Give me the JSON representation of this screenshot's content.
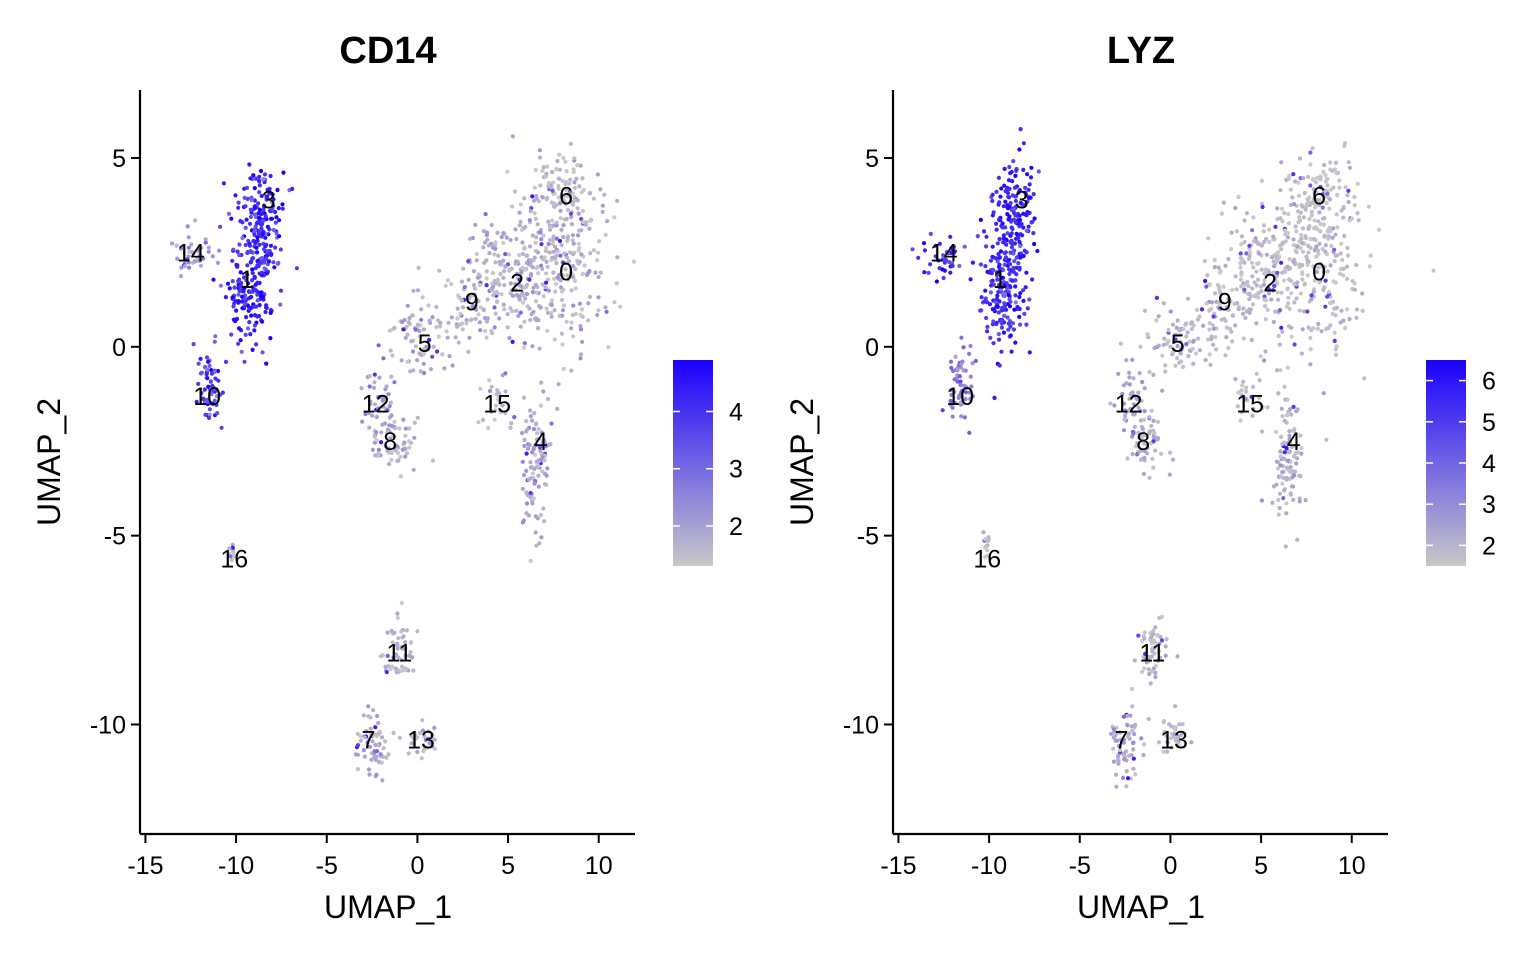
{
  "chart_data": [
    {
      "type": "scatter",
      "title": "CD14",
      "xlabel": "UMAP_1",
      "ylabel": "UMAP_2",
      "xlim": [
        -15.3,
        12.0
      ],
      "ylim": [
        -12.9,
        6.8
      ],
      "xticks": [
        -15,
        -10,
        -5,
        0,
        5,
        10
      ],
      "yticks": [
        -10,
        -5,
        0,
        5
      ],
      "xtick_labels": [
        "-15",
        "-10",
        "-5",
        "0",
        "5",
        "10"
      ],
      "ytick_labels": [
        "-10",
        "-5",
        "0",
        "5"
      ],
      "colors": {
        "low": "#c8c8c8",
        "high": "#1a00ff"
      },
      "legend": {
        "placement": "right",
        "min": 1.3,
        "max": 4.9,
        "ticks": [
          2,
          3,
          4
        ],
        "labels": [
          "2",
          "3",
          "4"
        ]
      },
      "cluster_labels": [
        {
          "label": "0",
          "x": 8.2,
          "y": 2.0
        },
        {
          "label": "1",
          "x": -9.4,
          "y": 1.8
        },
        {
          "label": "2",
          "x": 5.5,
          "y": 1.7
        },
        {
          "label": "3",
          "x": -8.2,
          "y": 3.9
        },
        {
          "label": "4",
          "x": 6.8,
          "y": -2.5
        },
        {
          "label": "5",
          "x": 0.4,
          "y": 0.1
        },
        {
          "label": "6",
          "x": 8.2,
          "y": 4.0
        },
        {
          "label": "7",
          "x": -2.7,
          "y": -10.4
        },
        {
          "label": "8",
          "x": -1.5,
          "y": -2.5
        },
        {
          "label": "9",
          "x": 3.0,
          "y": 1.2
        },
        {
          "label": "10",
          "x": -11.6,
          "y": -1.3
        },
        {
          "label": "11",
          "x": -1.0,
          "y": -8.1
        },
        {
          "label": "12",
          "x": -2.3,
          "y": -1.5
        },
        {
          "label": "13",
          "x": 0.2,
          "y": -10.4
        },
        {
          "label": "14",
          "x": -12.5,
          "y": 2.5
        },
        {
          "label": "15",
          "x": 4.4,
          "y": -1.5
        },
        {
          "label": "16",
          "x": -10.1,
          "y": -5.6
        }
      ],
      "clusters": [
        {
          "id": "0",
          "cx": 8.0,
          "cy": 2.3,
          "sx": 1.9,
          "sy": 1.6,
          "n": 240,
          "mean": 1.6
        },
        {
          "id": "2",
          "cx": 5.3,
          "cy": 2.0,
          "sx": 1.5,
          "sy": 1.2,
          "n": 160,
          "mean": 1.7
        },
        {
          "id": "6",
          "cx": 8.0,
          "cy": 4.0,
          "sx": 1.2,
          "sy": 0.8,
          "n": 90,
          "mean": 1.5
        },
        {
          "id": "9",
          "cx": 3.0,
          "cy": 1.2,
          "sx": 1.1,
          "sy": 0.9,
          "n": 70,
          "mean": 1.6
        },
        {
          "id": "5",
          "cx": 0.5,
          "cy": 0.2,
          "sx": 1.3,
          "sy": 0.7,
          "n": 80,
          "mean": 1.7
        },
        {
          "id": "12",
          "cx": -2.1,
          "cy": -1.5,
          "sx": 0.6,
          "sy": 0.8,
          "n": 45,
          "mean": 2.0
        },
        {
          "id": "8",
          "cx": -1.3,
          "cy": -2.5,
          "sx": 0.8,
          "sy": 0.5,
          "n": 60,
          "mean": 1.6
        },
        {
          "id": "15",
          "cx": 4.3,
          "cy": -1.4,
          "sx": 0.5,
          "sy": 0.5,
          "n": 25,
          "mean": 1.6
        },
        {
          "id": "4",
          "cx": 6.5,
          "cy": -3.0,
          "sx": 0.6,
          "sy": 1.2,
          "n": 110,
          "mean": 1.8
        },
        {
          "id": "3",
          "cx": -8.6,
          "cy": 3.4,
          "sx": 0.8,
          "sy": 1.0,
          "n": 160,
          "mean": 4.2
        },
        {
          "id": "1",
          "cx": -9.2,
          "cy": 1.5,
          "sx": 0.9,
          "sy": 1.1,
          "n": 180,
          "mean": 4.2
        },
        {
          "id": "14",
          "cx": -12.4,
          "cy": 2.4,
          "sx": 0.8,
          "sy": 0.4,
          "n": 40,
          "mean": 2.2
        },
        {
          "id": "10",
          "cx": -11.5,
          "cy": -1.0,
          "sx": 0.5,
          "sy": 0.7,
          "n": 60,
          "mean": 3.7
        },
        {
          "id": "16",
          "cx": -10.2,
          "cy": -5.4,
          "sx": 0.15,
          "sy": 0.3,
          "n": 12,
          "mean": 1.5
        },
        {
          "id": "11",
          "cx": -1.0,
          "cy": -8.1,
          "sx": 0.6,
          "sy": 0.6,
          "n": 55,
          "mean": 1.6
        },
        {
          "id": "7",
          "cx": -2.4,
          "cy": -10.5,
          "sx": 0.7,
          "sy": 0.6,
          "n": 65,
          "mean": 1.8
        },
        {
          "id": "13",
          "cx": 0.2,
          "cy": -10.3,
          "sx": 0.5,
          "sy": 0.4,
          "n": 30,
          "mean": 1.6
        }
      ]
    },
    {
      "type": "scatter",
      "title": "LYZ",
      "xlabel": "UMAP_1",
      "ylabel": "UMAP_2",
      "xlim": [
        -15.3,
        12.0
      ],
      "ylim": [
        -12.9,
        6.8
      ],
      "xticks": [
        -15,
        -10,
        -5,
        0,
        5,
        10
      ],
      "yticks": [
        -10,
        -5,
        0,
        5
      ],
      "xtick_labels": [
        "-15",
        "-10",
        "-5",
        "0",
        "5",
        "10"
      ],
      "ytick_labels": [
        "-10",
        "-5",
        "0",
        "5"
      ],
      "colors": {
        "low": "#c8c8c8",
        "high": "#1a00ff"
      },
      "legend": {
        "placement": "right",
        "min": 1.5,
        "max": 6.5,
        "ticks": [
          2,
          3,
          4,
          5,
          6
        ],
        "labels": [
          "2",
          "3",
          "4",
          "5",
          "6"
        ]
      },
      "cluster_labels": [
        {
          "label": "0",
          "x": 8.2,
          "y": 2.0
        },
        {
          "label": "1",
          "x": -9.4,
          "y": 1.8
        },
        {
          "label": "2",
          "x": 5.5,
          "y": 1.7
        },
        {
          "label": "3",
          "x": -8.2,
          "y": 3.9
        },
        {
          "label": "4",
          "x": 6.8,
          "y": -2.5
        },
        {
          "label": "5",
          "x": 0.4,
          "y": 0.1
        },
        {
          "label": "6",
          "x": 8.2,
          "y": 4.0
        },
        {
          "label": "7",
          "x": -2.7,
          "y": -10.4
        },
        {
          "label": "8",
          "x": -1.5,
          "y": -2.5
        },
        {
          "label": "9",
          "x": 3.0,
          "y": 1.2
        },
        {
          "label": "10",
          "x": -11.6,
          "y": -1.3
        },
        {
          "label": "11",
          "x": -1.0,
          "y": -8.1
        },
        {
          "label": "12",
          "x": -2.3,
          "y": -1.5
        },
        {
          "label": "13",
          "x": 0.2,
          "y": -10.4
        },
        {
          "label": "14",
          "x": -12.5,
          "y": 2.5
        },
        {
          "label": "15",
          "x": 4.4,
          "y": -1.5
        },
        {
          "label": "16",
          "x": -10.1,
          "y": -5.6
        }
      ],
      "clusters": [
        {
          "id": "0",
          "cx": 8.0,
          "cy": 2.3,
          "sx": 1.9,
          "sy": 1.6,
          "n": 240,
          "mean": 1.8
        },
        {
          "id": "2",
          "cx": 5.3,
          "cy": 2.0,
          "sx": 1.5,
          "sy": 1.2,
          "n": 160,
          "mean": 1.8
        },
        {
          "id": "6",
          "cx": 8.0,
          "cy": 4.0,
          "sx": 1.2,
          "sy": 0.8,
          "n": 90,
          "mean": 1.7
        },
        {
          "id": "9",
          "cx": 3.0,
          "cy": 1.2,
          "sx": 1.1,
          "sy": 0.9,
          "n": 70,
          "mean": 1.8
        },
        {
          "id": "5",
          "cx": 0.5,
          "cy": 0.2,
          "sx": 1.3,
          "sy": 0.7,
          "n": 80,
          "mean": 1.9
        },
        {
          "id": "12",
          "cx": -2.1,
          "cy": -1.5,
          "sx": 0.6,
          "sy": 0.8,
          "n": 45,
          "mean": 2.5
        },
        {
          "id": "8",
          "cx": -1.3,
          "cy": -2.5,
          "sx": 0.8,
          "sy": 0.5,
          "n": 60,
          "mean": 2.0
        },
        {
          "id": "15",
          "cx": 4.3,
          "cy": -1.4,
          "sx": 0.5,
          "sy": 0.5,
          "n": 25,
          "mean": 1.8
        },
        {
          "id": "4",
          "cx": 6.5,
          "cy": -3.0,
          "sx": 0.6,
          "sy": 1.2,
          "n": 110,
          "mean": 2.0
        },
        {
          "id": "3",
          "cx": -8.6,
          "cy": 3.4,
          "sx": 0.8,
          "sy": 1.0,
          "n": 160,
          "mean": 5.6
        },
        {
          "id": "1",
          "cx": -9.2,
          "cy": 1.5,
          "sx": 0.9,
          "sy": 1.1,
          "n": 180,
          "mean": 5.4
        },
        {
          "id": "14",
          "cx": -12.4,
          "cy": 2.4,
          "sx": 0.8,
          "sy": 0.4,
          "n": 40,
          "mean": 5.2
        },
        {
          "id": "10",
          "cx": -11.5,
          "cy": -1.0,
          "sx": 0.5,
          "sy": 0.7,
          "n": 60,
          "mean": 3.2
        },
        {
          "id": "16",
          "cx": -10.2,
          "cy": -5.4,
          "sx": 0.15,
          "sy": 0.3,
          "n": 12,
          "mean": 1.8
        },
        {
          "id": "11",
          "cx": -1.0,
          "cy": -8.1,
          "sx": 0.6,
          "sy": 0.6,
          "n": 55,
          "mean": 1.9
        },
        {
          "id": "7",
          "cx": -2.4,
          "cy": -10.5,
          "sx": 0.7,
          "sy": 0.6,
          "n": 65,
          "mean": 2.2
        },
        {
          "id": "13",
          "cx": 0.2,
          "cy": -10.3,
          "sx": 0.5,
          "sy": 0.4,
          "n": 30,
          "mean": 1.9
        }
      ]
    }
  ]
}
